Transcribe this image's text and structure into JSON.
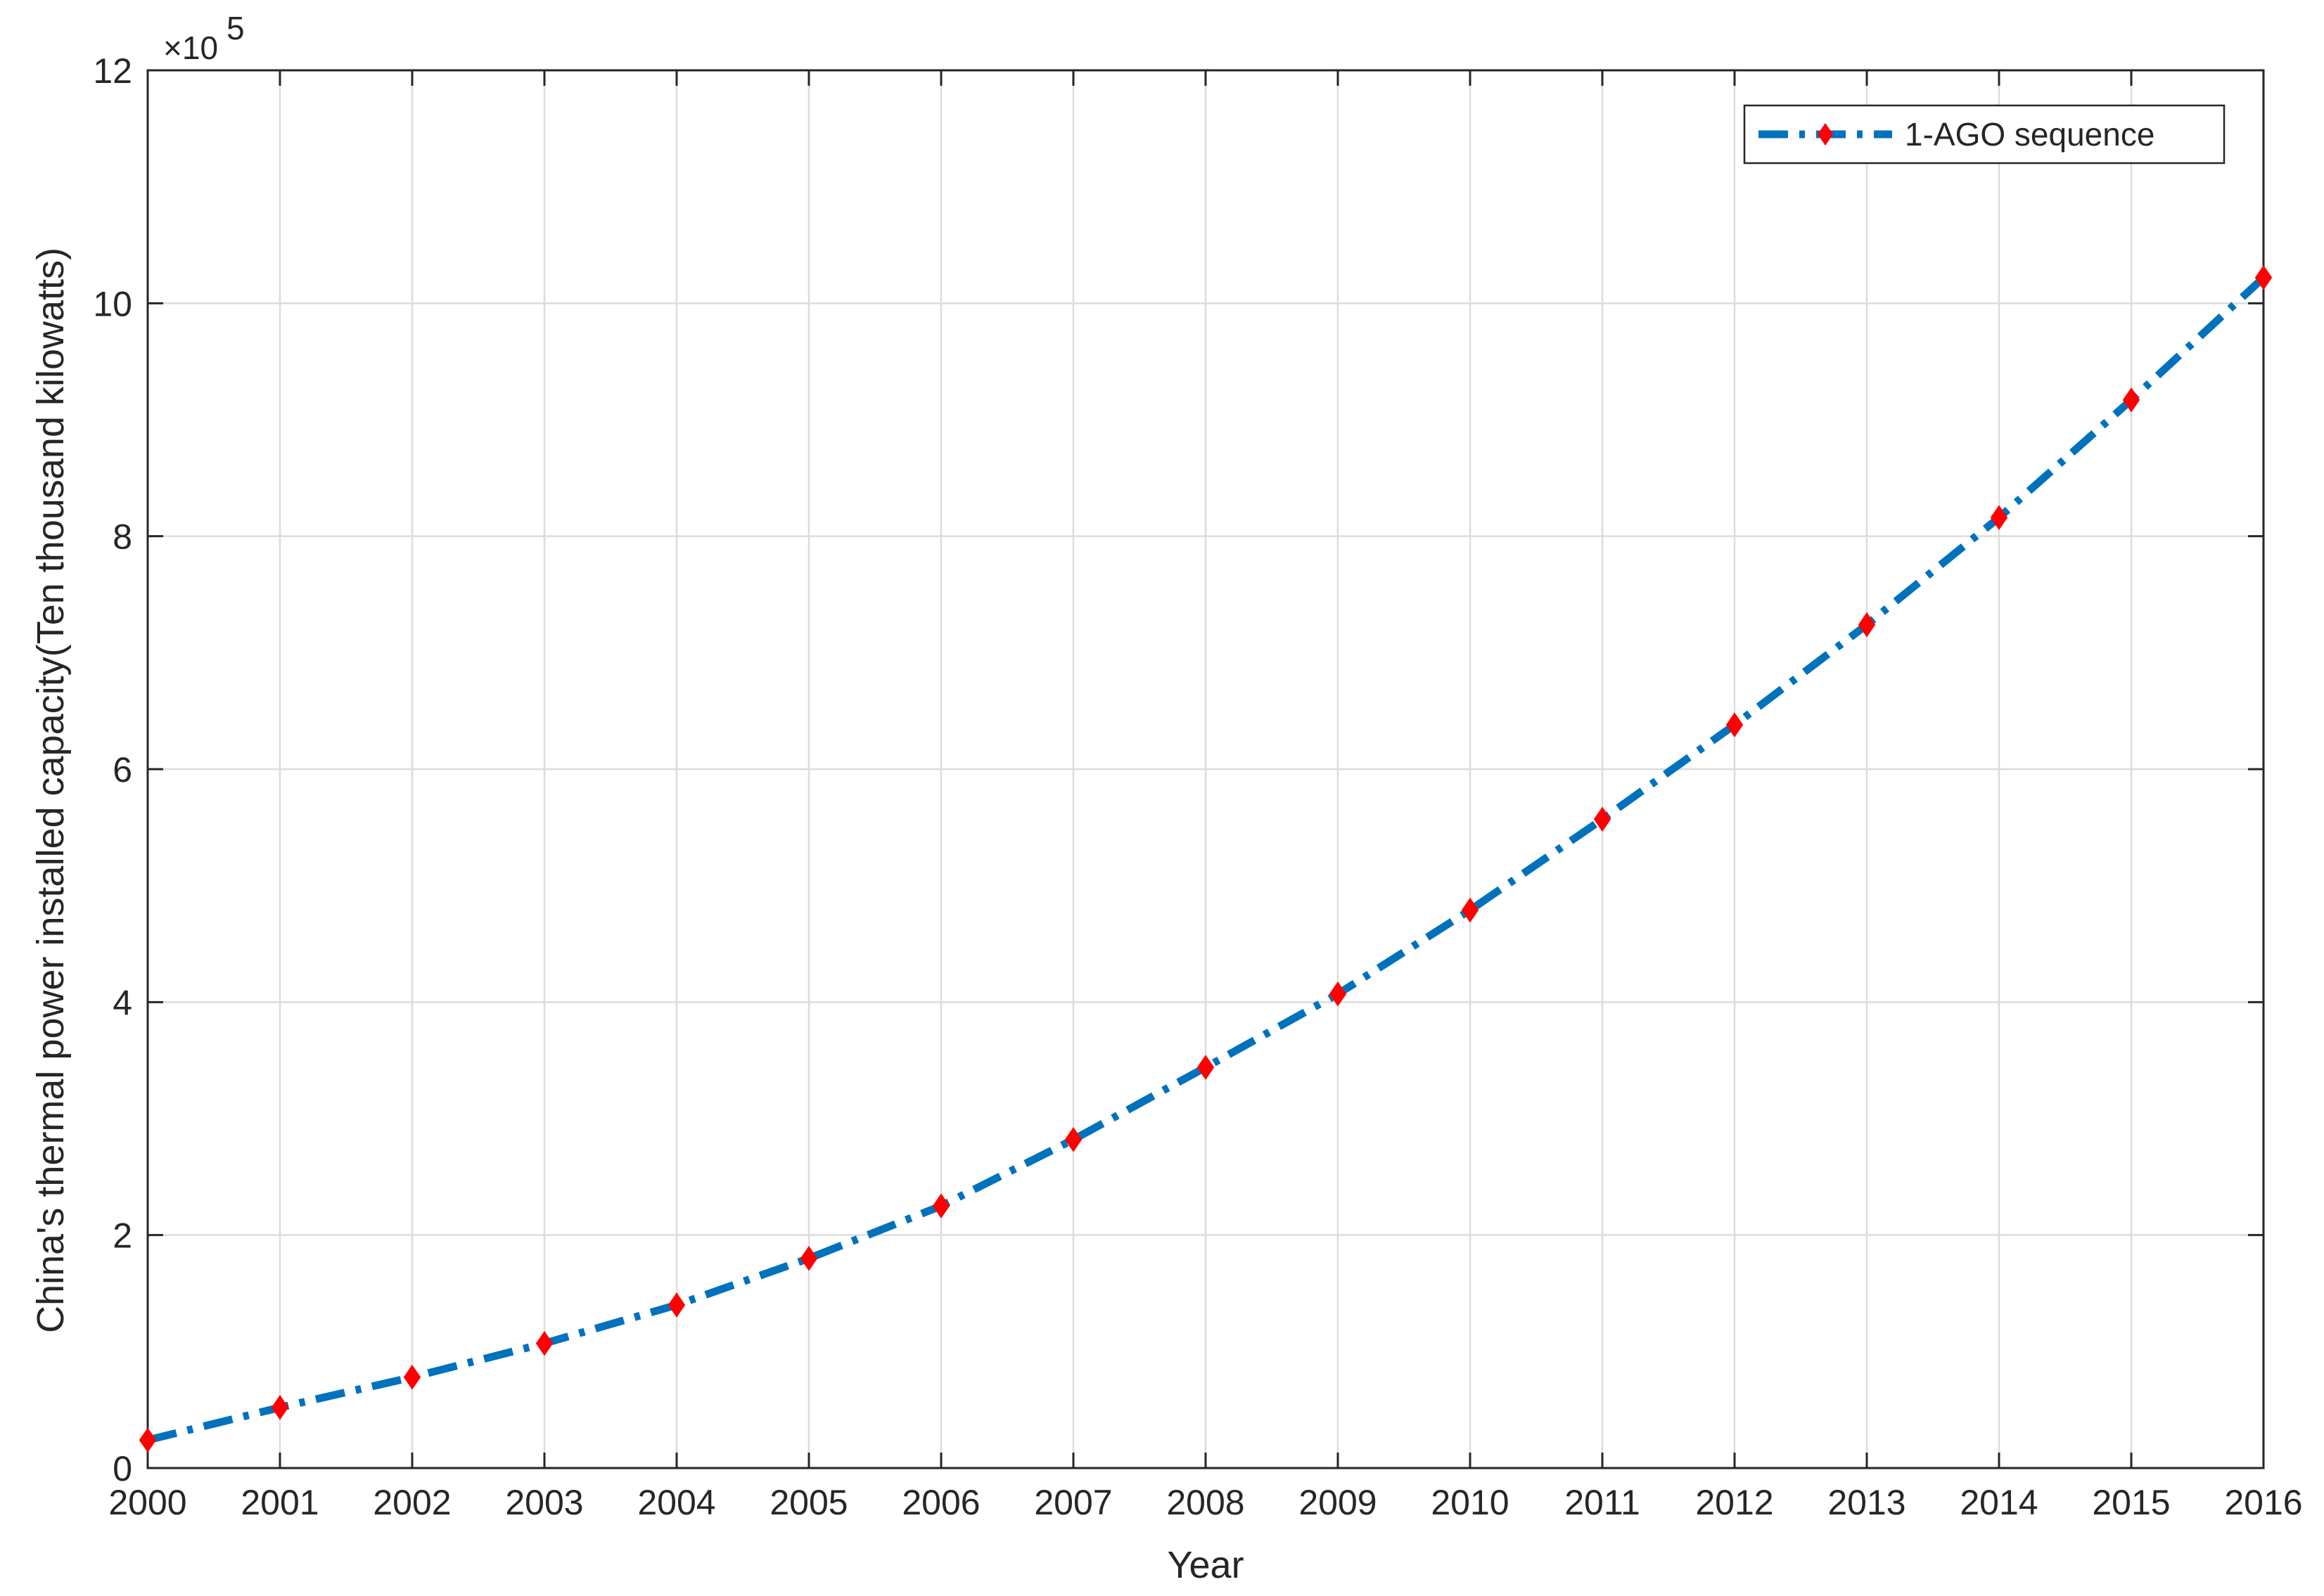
{
  "chart_data": {
    "type": "line",
    "xlabel": "Year",
    "ylabel": "China's thermal power installed capacity(Ten thousand kilowatts)",
    "y_exponent": {
      "base": "×10",
      "power": "5"
    },
    "x": [
      2000,
      2001,
      2002,
      2003,
      2004,
      2005,
      2006,
      2007,
      2008,
      2009,
      2010,
      2011,
      2012,
      2013,
      2014,
      2015,
      2016
    ],
    "xlim": [
      2000,
      2016
    ],
    "ylim": [
      0,
      12
    ],
    "xticks": [
      "2000",
      "2001",
      "2002",
      "2003",
      "2004",
      "2005",
      "2006",
      "2007",
      "2008",
      "2009",
      "2010",
      "2011",
      "2012",
      "2013",
      "2014",
      "2015",
      "2016"
    ],
    "yticks": [
      "0",
      "2",
      "4",
      "6",
      "8",
      "10",
      "12"
    ],
    "grid": true,
    "legend_position": "top-right",
    "series": [
      {
        "name": "1-AGO sequence",
        "values": [
          0.24,
          0.52,
          0.78,
          1.07,
          1.4,
          1.8,
          2.25,
          2.82,
          3.44,
          4.07,
          4.79,
          5.57,
          6.38,
          7.24,
          8.16,
          9.17,
          10.22
        ],
        "line_color": "#0072BD",
        "marker_color": "#FF0000"
      }
    ]
  }
}
